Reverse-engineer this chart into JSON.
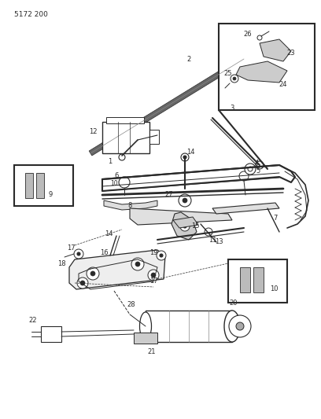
{
  "title": "5172 200",
  "bg_color": "#ffffff",
  "line_color": "#2a2a2a",
  "fig_width": 4.08,
  "fig_height": 5.33,
  "dpi": 100
}
